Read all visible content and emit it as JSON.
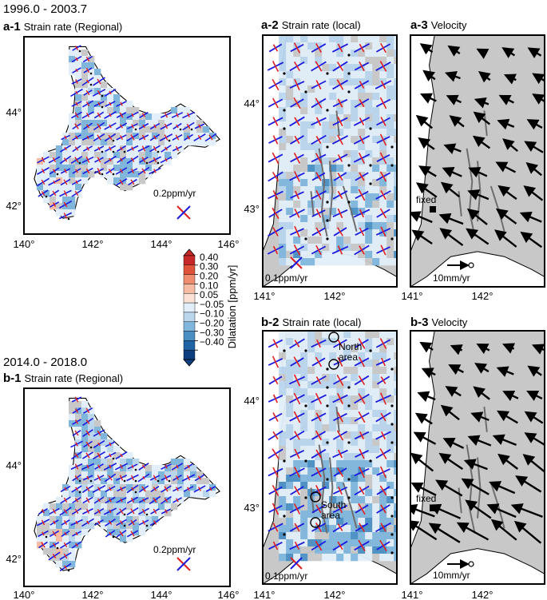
{
  "period_a": "1996.0 - 2003.7",
  "period_b": "2014.0 - 2018.0",
  "panels": {
    "a1": {
      "id": "a-1",
      "title": "Strain rate (Regional)",
      "scale": "0.2ppm/yr"
    },
    "a2": {
      "id": "a-2",
      "title": "Strain rate (local)",
      "scale": "0.1ppm/yr"
    },
    "a3": {
      "id": "a-3",
      "title": "Velocity",
      "scale": "10mm/yr",
      "fixed": "fixed"
    },
    "b1": {
      "id": "b-1",
      "title": "Strain rate (Regional)",
      "scale": "0.2ppm/yr"
    },
    "b2": {
      "id": "b-2",
      "title": "Strain rate (local)",
      "scale": "0.1ppm/yr",
      "north_area": [
        "North",
        "area"
      ],
      "south_area": [
        "South",
        "area"
      ]
    },
    "b3": {
      "id": "b-3",
      "title": "Velocity",
      "scale": "10mm/yr",
      "fixed": "fixed"
    }
  },
  "axes": {
    "regional_x": [
      "140°",
      "142°",
      "144°",
      "146°"
    ],
    "regional_y": [
      "44°",
      "42°"
    ],
    "local_x": [
      "141°",
      "142°"
    ],
    "local_y": [
      "44°",
      "43°"
    ]
  },
  "colorbar": {
    "label": "Dilatation [ppm/yr]",
    "ticks": [
      "0.40",
      "0.30",
      "0.20",
      "0.10",
      "0.05",
      "−0.05",
      "−0.10",
      "−0.20",
      "−0.30",
      "−0.40"
    ],
    "colors": [
      "#c62828",
      "#e0533b",
      "#ef8d6e",
      "#f6bba3",
      "#fae2d6",
      "#e2eef9",
      "#b9d6ed",
      "#80b6dc",
      "#4a8fc4",
      "#1f63a5",
      "#0c3f7e"
    ]
  },
  "colors": {
    "land": "#c8c8c8",
    "extension": "#e02020",
    "contraction": "#1a1ae0",
    "fault": "#6e6e6e"
  }
}
